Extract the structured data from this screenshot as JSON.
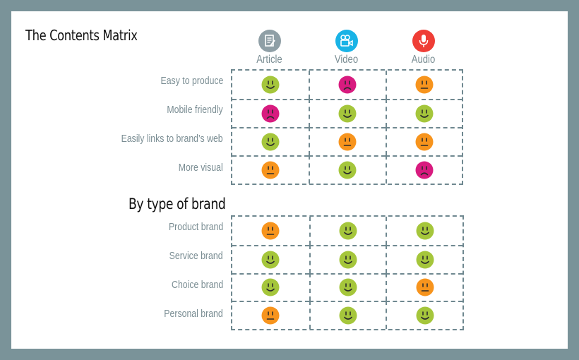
{
  "title": "The Contents Matrix",
  "subtitle": "By type of brand",
  "columns": [
    {
      "label": "Article",
      "icon": "article-icon",
      "color": "#8f9fa6"
    },
    {
      "label": "Video",
      "icon": "video-camera-icon",
      "color": "#19b3e6"
    },
    {
      "label": "Audio",
      "icon": "microphone-icon",
      "color": "#ef3e36"
    }
  ],
  "face_colors": {
    "happy": "#a5c63b",
    "neutral": "#f7941d",
    "sad": "#d81b7f"
  },
  "matrix1": [
    {
      "label": "Easy to produce",
      "ratings": [
        "happy",
        "sad",
        "neutral"
      ]
    },
    {
      "label": "Mobile friendly",
      "ratings": [
        "sad",
        "happy",
        "happy"
      ]
    },
    {
      "label": "Easily links to brand’s web",
      "ratings": [
        "happy",
        "neutral",
        "neutral"
      ]
    },
    {
      "label": "More visual",
      "ratings": [
        "neutral",
        "happy",
        "sad"
      ]
    }
  ],
  "matrix2": [
    {
      "label": "Product brand",
      "ratings": [
        "neutral",
        "happy",
        "happy"
      ]
    },
    {
      "label": "Service brand",
      "ratings": [
        "happy",
        "happy",
        "happy"
      ]
    },
    {
      "label": "Choice brand",
      "ratings": [
        "happy",
        "happy",
        "neutral"
      ]
    },
    {
      "label": "Personal brand",
      "ratings": [
        "neutral",
        "happy",
        "happy"
      ]
    }
  ]
}
